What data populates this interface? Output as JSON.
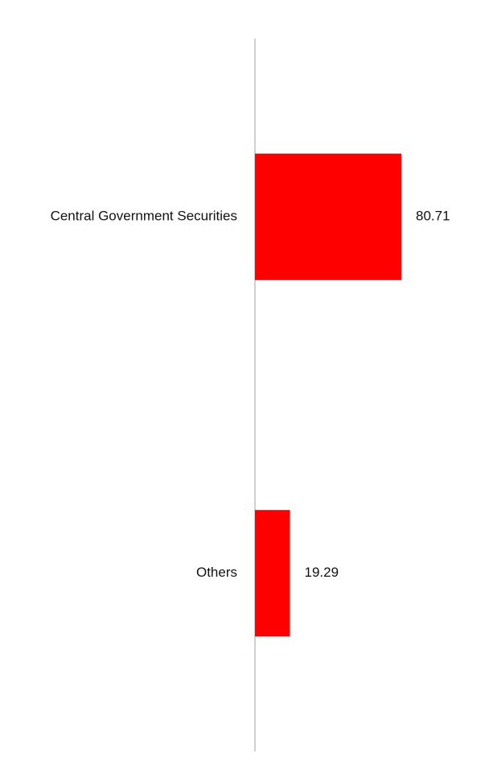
{
  "chart_data": {
    "type": "hbar",
    "categories": [
      "Central Government Securities",
      "Others"
    ],
    "values": [
      80.71,
      19.29
    ],
    "color": "#ff0000",
    "xlim": [
      0,
      100
    ]
  }
}
